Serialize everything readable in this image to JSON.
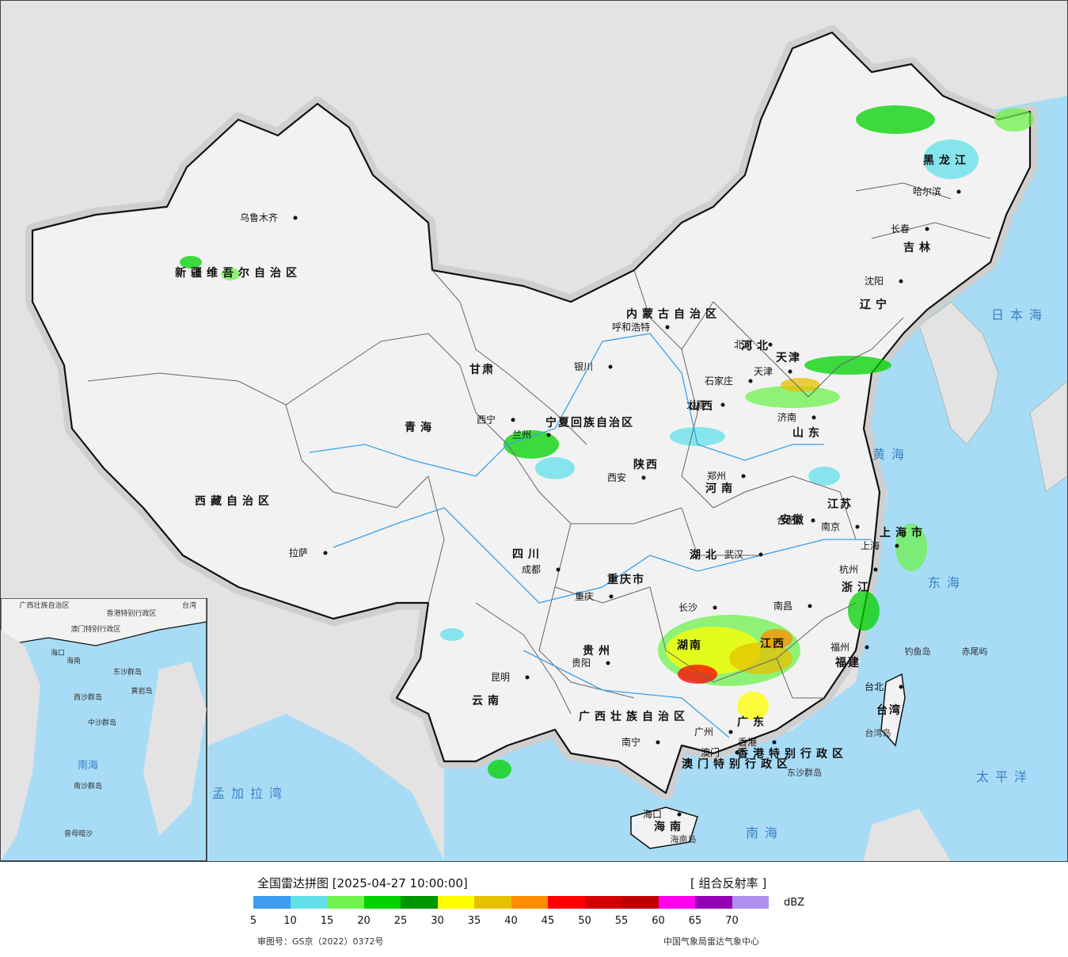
{
  "map": {
    "regions": [
      "新疆维吾尔自治区",
      "西藏自治区",
      "青海",
      "甘肃",
      "四川",
      "云南",
      "内蒙古自治区",
      "黑龙江",
      "吉林",
      "辽宁",
      "河北",
      "山西",
      "陕西",
      "河南",
      "山东",
      "江苏",
      "安徽",
      "湖北",
      "湖南",
      "江西",
      "浙江",
      "福建",
      "广东",
      "广西壮族自治区",
      "贵州",
      "重庆市",
      "宁夏回族自治区",
      "上海市",
      "天津",
      "台湾",
      "海南",
      "香港特别行政区",
      "澳门特别行政区"
    ],
    "cities": [
      "乌鲁木齐",
      "拉萨",
      "西宁",
      "兰州",
      "银川",
      "呼和浩特",
      "北京",
      "天津",
      "石家庄",
      "太原",
      "济南",
      "西安",
      "郑州",
      "合肥",
      "南京",
      "上海",
      "杭州",
      "武汉",
      "成都",
      "重庆",
      "贵阳",
      "昆明",
      "长沙",
      "南昌",
      "福州",
      "台北",
      "广州",
      "香港",
      "澳门",
      "南宁",
      "海口",
      "哈尔滨",
      "长春",
      "沈阳"
    ],
    "seas": [
      "日本海",
      "黄海",
      "东海",
      "南海",
      "太平洋",
      "孟加拉湾"
    ],
    "islands": [
      "钓鱼岛",
      "赤尾屿",
      "台湾岛",
      "东沙群岛",
      "海南岛"
    ],
    "inset_labels": [
      "广西壮族自治区",
      "澳门特别行政区",
      "香港特别行政区",
      "台湾",
      "海口",
      "海南",
      "西沙群岛",
      "东沙群岛",
      "中沙群岛",
      "黄岩岛",
      "南海",
      "南沙群岛",
      "曾母暗沙"
    ]
  },
  "legend": {
    "title": "全国雷达拼图 [2025-04-27 10:00:00]",
    "product": "[ 组合反射率 ]",
    "unit": "dBZ",
    "ticks": [
      "5",
      "10",
      "15",
      "20",
      "25",
      "30",
      "35",
      "40",
      "45",
      "50",
      "55",
      "60",
      "65",
      "70"
    ],
    "colors": [
      "#3d9cf0",
      "#62e0ea",
      "#6ef24e",
      "#00d200",
      "#009600",
      "#ffff00",
      "#e6c000",
      "#ff8c00",
      "#ff0000",
      "#d20000",
      "#c00000",
      "#ff00f0",
      "#9600b4",
      "#ad90f0"
    ],
    "approval_number": "审图号：GS京（2022）0372号",
    "source": "中国气象局雷达气象中心"
  },
  "colors": {
    "ocean": "#a8dcf6",
    "land": "#f2f2f2",
    "outside": "#e3e3e3",
    "border": "#111111"
  }
}
